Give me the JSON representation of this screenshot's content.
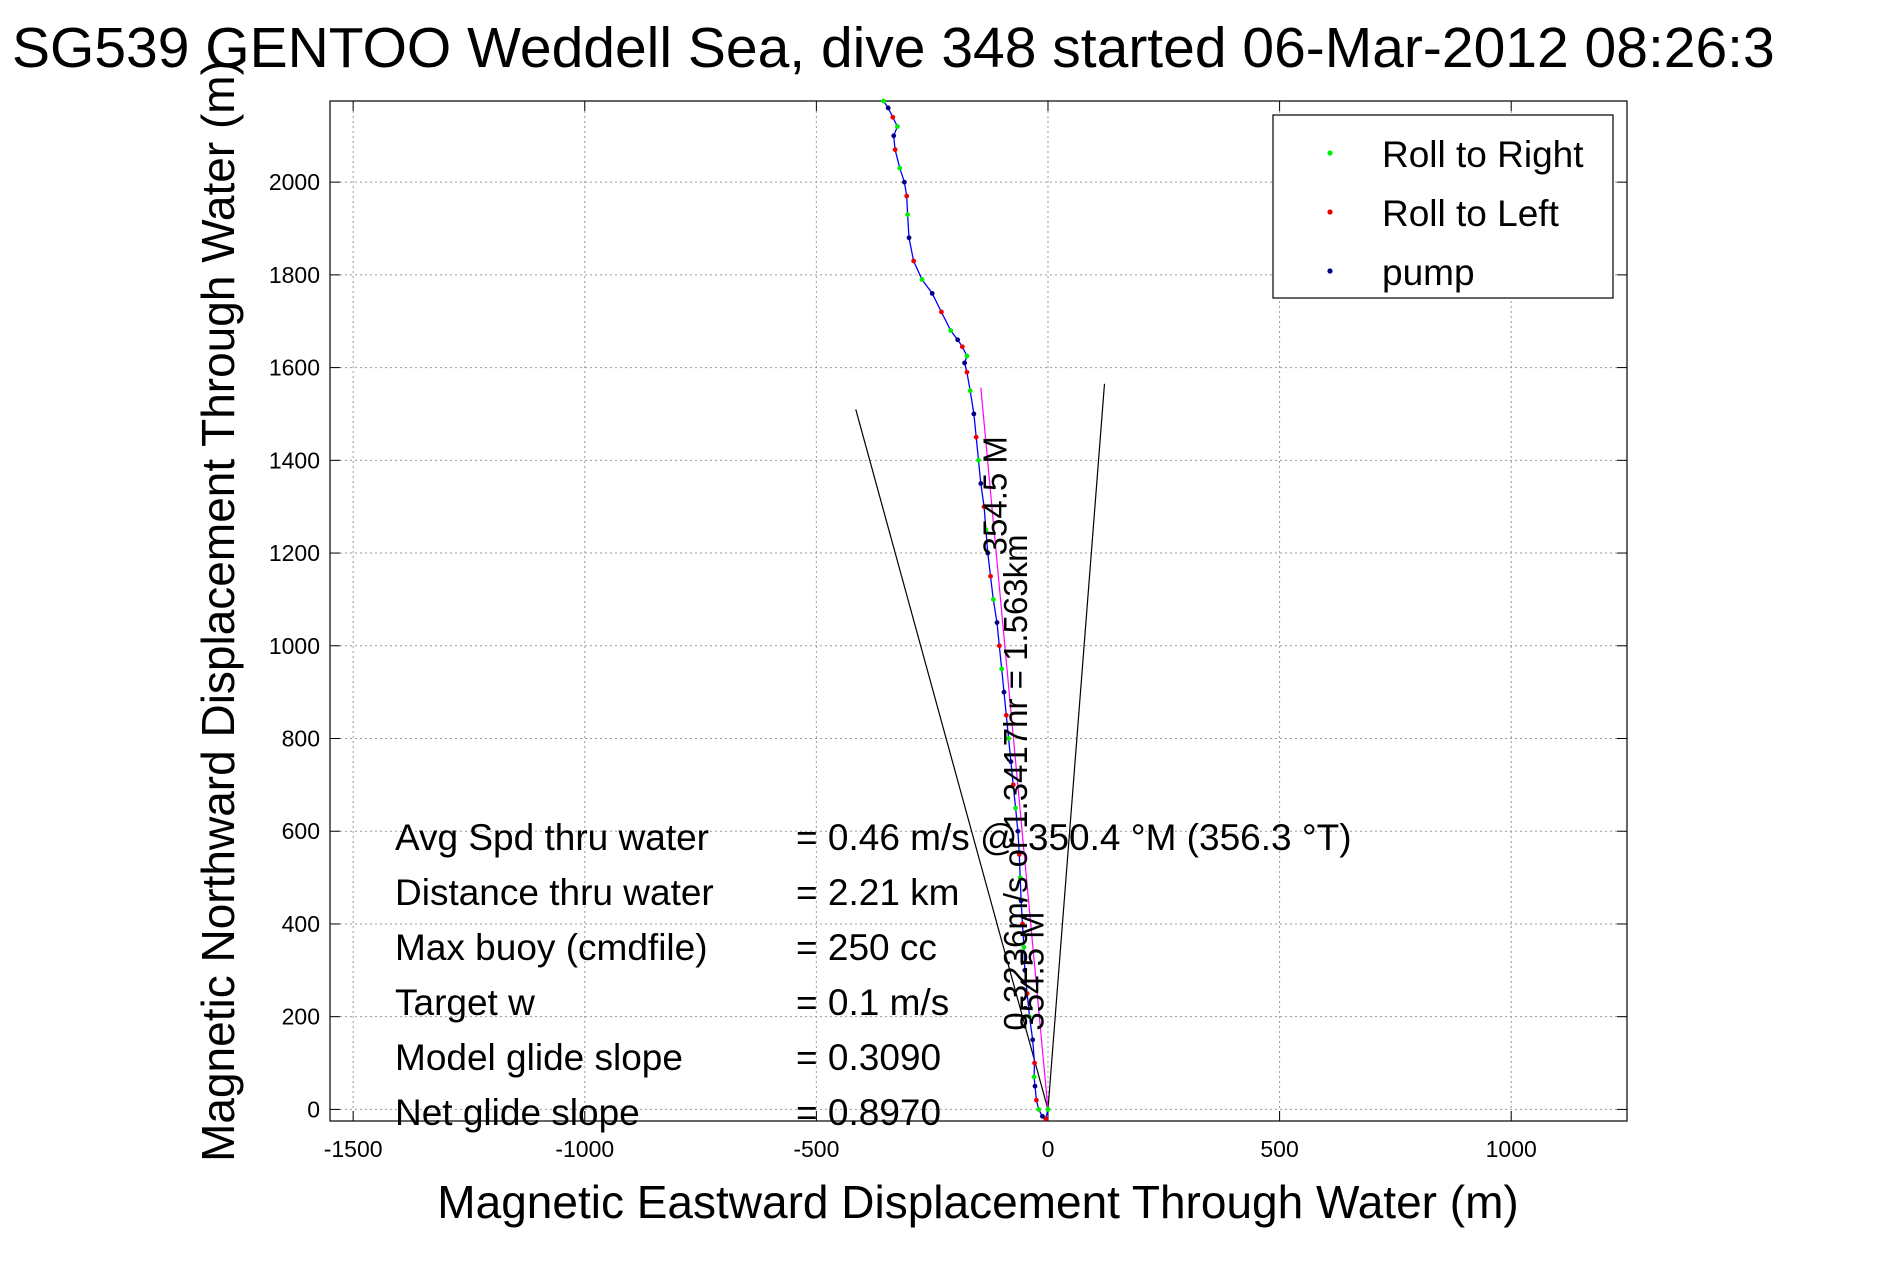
{
  "chart_data": {
    "type": "line",
    "title": "SG539 GENTOO Weddell Sea, dive 348 started 06-Mar-2012 08:26:3",
    "xlabel": "Magnetic Eastward Displacement Through Water (m)",
    "ylabel": "Magnetic Northward Displacement Through Water (m)",
    "xlim": [
      -1550,
      1250
    ],
    "ylim": [
      -25,
      2175
    ],
    "xticks": [
      -1500,
      -1000,
      -500,
      0,
      500,
      1000
    ],
    "yticks": [
      0,
      200,
      400,
      600,
      800,
      1000,
      1200,
      1400,
      1600,
      1800,
      2000
    ],
    "grid": true,
    "legend_position": "top-right",
    "legend": [
      {
        "label": "Roll to Right",
        "color": "#00ee00"
      },
      {
        "label": "Roll to Left",
        "color": "#ee0000"
      },
      {
        "label": "pump",
        "color": "#000080"
      }
    ],
    "series": [
      {
        "name": "track",
        "color": "#0000ff",
        "x": [
          0,
          -5,
          -12,
          -20,
          -25,
          -28,
          -30,
          -29,
          -33,
          -40,
          -45,
          -50,
          -52,
          -55,
          -58,
          -60,
          -62,
          -65,
          -70,
          -75,
          -80,
          -85,
          -90,
          -95,
          -100,
          -105,
          -110,
          -118,
          -124,
          -130,
          -134,
          -138,
          -145,
          -150,
          -155,
          -160,
          -168,
          -175,
          -180,
          -175,
          -185,
          -195,
          -210,
          -230,
          -250,
          -272,
          -290,
          -300,
          -303,
          -305,
          -310,
          -320,
          -330,
          -333,
          -325,
          -335,
          -345,
          -355
        ],
        "y": [
          0,
          -20,
          -15,
          0,
          20,
          50,
          70,
          100,
          150,
          200,
          250,
          300,
          350,
          400,
          450,
          500,
          550,
          600,
          650,
          700,
          750,
          800,
          850,
          900,
          950,
          1000,
          1050,
          1100,
          1150,
          1200,
          1250,
          1300,
          1350,
          1400,
          1450,
          1500,
          1550,
          1590,
          1610,
          1625,
          1645,
          1660,
          1680,
          1720,
          1760,
          1790,
          1830,
          1880,
          1930,
          1970,
          2000,
          2030,
          2070,
          2100,
          2120,
          2140,
          2160,
          2175
        ]
      }
    ],
    "reference_lines": [
      {
        "name": "cone-left",
        "color": "#000000",
        "x": [
          0,
          -415
        ],
        "y": [
          0,
          1510
        ]
      },
      {
        "name": "cone-right",
        "color": "#000000",
        "x": [
          0,
          122
        ],
        "y": [
          0,
          1565
        ]
      },
      {
        "name": "heading",
        "color": "#ff00ff",
        "x": [
          0,
          -145
        ],
        "y": [
          0,
          1557
        ]
      }
    ],
    "annotations": [
      {
        "text": "0.3236m/s or 1.3417hr = 1.563km",
        "x": -45,
        "y": 170,
        "rotation": -90
      },
      {
        "text": "354.5 M",
        "x": -10,
        "y": 170,
        "rotation": -90
      },
      {
        "text": "354.5 M",
        "x": -90,
        "y": 1195,
        "rotation": -90
      }
    ],
    "stats": [
      {
        "label": "Avg Spd thru water",
        "value": "=  0.46 m/s @ 350.4 °M (356.3 °T)"
      },
      {
        "label": "Distance thru water",
        "value": "=  2.21 km"
      },
      {
        "label": "Max buoy (cmdfile)",
        "value": "= 250 cc"
      },
      {
        "label": "Target w",
        "value": "= 0.1 m/s"
      },
      {
        "label": "Model glide slope",
        "value": "= 0.3090"
      },
      {
        "label": "Net glide slope",
        "value": "= 0.8970"
      }
    ]
  }
}
